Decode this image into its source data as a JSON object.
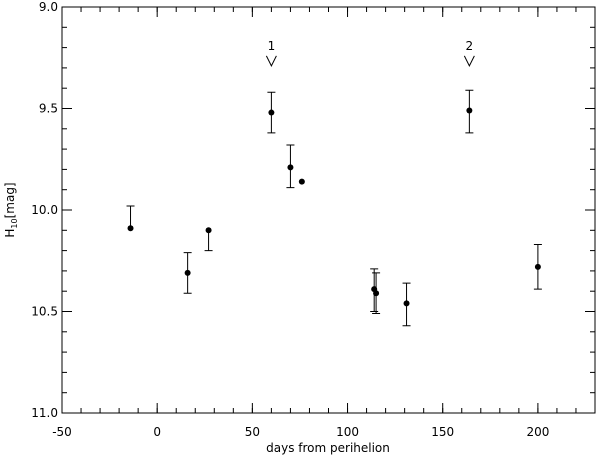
{
  "chart_data": {
    "type": "scatter",
    "xlabel": "days from perihelion",
    "ylabel": "H",
    "ylabel_subscript": "10",
    "ylabel_unit": "[mag]",
    "x": [
      -14,
      16,
      27,
      60,
      70,
      76,
      114,
      115,
      131,
      164,
      200
    ],
    "values": [
      10.09,
      10.31,
      10.1,
      9.52,
      9.79,
      9.86,
      10.39,
      10.41,
      10.46,
      9.51,
      10.28
    ],
    "yerr_up": [
      0.11,
      0.1,
      null,
      0.1,
      0.11,
      null,
      0.1,
      0.1,
      0.1,
      0.1,
      0.11
    ],
    "yerr_down": [
      null,
      0.1,
      0.1,
      0.1,
      0.1,
      null,
      0.11,
      0.1,
      0.11,
      0.11,
      0.11
    ],
    "color": "#000000",
    "xlim": [
      -50,
      230
    ],
    "xticks": [
      -50,
      0,
      50,
      100,
      150,
      200
    ],
    "ylim": [
      9.0,
      11.0
    ],
    "y_inverted": true,
    "yticks": [
      {
        "value": 9.0,
        "label": "9.0"
      },
      {
        "value": 9.5,
        "label": "9.5"
      },
      {
        "value": 10.0,
        "label": "10.0"
      },
      {
        "value": 10.5,
        "label": "10.5"
      },
      {
        "value": 11.0,
        "label": "11.0"
      }
    ],
    "annotations": [
      {
        "text": "1",
        "x": 60,
        "y": 9.29
      },
      {
        "text": "2",
        "x": 164,
        "y": 9.29
      }
    ]
  }
}
